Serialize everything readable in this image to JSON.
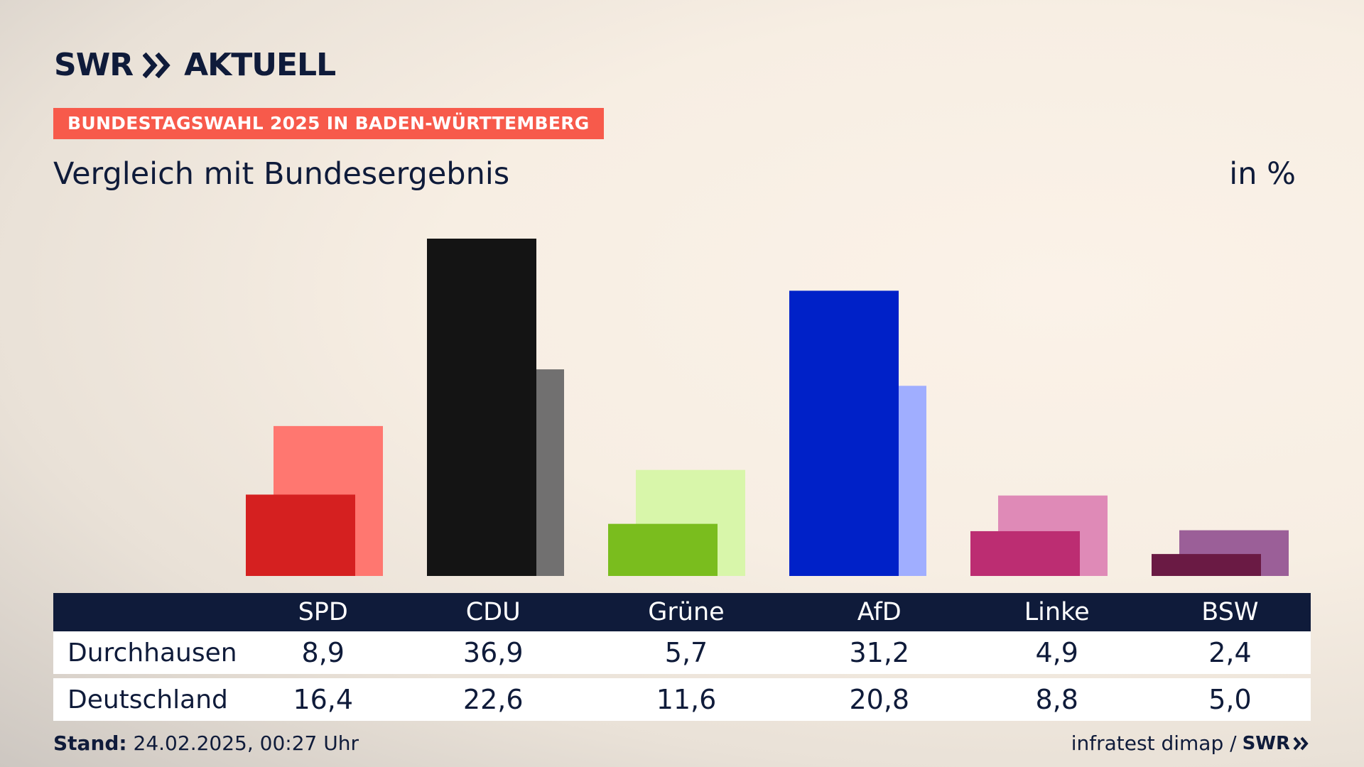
{
  "header": {
    "logo_text": "SWR",
    "logo_suffix": "AKTUELL",
    "badge": "BUNDESTAGSWAHL 2025 IN BADEN-WÜRTTEMBERG",
    "title": "Vergleich mit Bundesergebnis",
    "unit": "in %"
  },
  "chart_data": {
    "type": "bar",
    "categories": [
      "SPD",
      "CDU",
      "Grüne",
      "AfD",
      "Linke",
      "BSW"
    ],
    "series": [
      {
        "name": "Durchhausen",
        "values": [
          8.9,
          36.9,
          5.7,
          31.2,
          4.9,
          2.4
        ]
      },
      {
        "name": "Deutschland",
        "values": [
          16.4,
          22.6,
          11.6,
          20.8,
          8.8,
          5.0
        ]
      }
    ],
    "colors_primary": [
      "#d52020",
      "#141414",
      "#7abd1e",
      "#0021c8",
      "#bc2d72",
      "#6a1a44"
    ],
    "colors_secondary": [
      "#ff7770",
      "#717070",
      "#d8f6aa",
      "#a0aeff",
      "#df8ab7",
      "#9b5f98"
    ],
    "ylim": [
      0,
      40
    ]
  },
  "table": {
    "rows": [
      {
        "label": "Durchhausen",
        "values": [
          "8,9",
          "36,9",
          "5,7",
          "31,2",
          "4,9",
          "2,4"
        ]
      },
      {
        "label": "Deutschland",
        "values": [
          "16,4",
          "22,6",
          "11,6",
          "20,8",
          "8,8",
          "5,0"
        ]
      }
    ]
  },
  "footer": {
    "stand_label": "Stand:",
    "stand_value": "24.02.2025, 00:27 Uhr",
    "source": "infratest dimap /",
    "source_logo": "SWR"
  }
}
